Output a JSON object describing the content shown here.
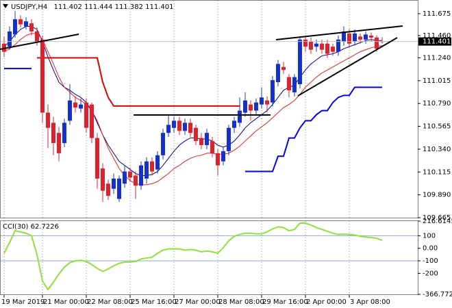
{
  "chart_data": [
    {
      "type": "candlestick",
      "title": "USDJPY,H4",
      "categories": [
        "19 Mar 2019",
        null,
        null,
        null,
        null,
        null,
        null,
        "21 Mar 00:00",
        null,
        null,
        null,
        null,
        null,
        null,
        null,
        "22 Mar 08:00",
        null,
        null,
        null,
        null,
        null,
        null,
        null,
        "25 Mar 16:00",
        null,
        null,
        null,
        null,
        null,
        null,
        null,
        "27 Mar 00:00",
        null,
        null,
        null,
        null,
        null,
        null,
        null,
        "28 Mar 08:00",
        null,
        null,
        null,
        null,
        null,
        null,
        null,
        "29 Mar 16:00",
        null,
        null,
        null,
        null,
        null,
        null,
        null,
        "2 Apr 00:00",
        null,
        null,
        null,
        null,
        null,
        null,
        null,
        "3 Apr 08:00",
        null,
        null,
        null,
        null,
        null,
        null
      ],
      "open": [
        111.38,
        111.35,
        111.47,
        111.62,
        111.55,
        111.58,
        111.5,
        111.42,
        110.7,
        110.6,
        110.5,
        110.4,
        110.62,
        110.8,
        110.74,
        110.8,
        110.78,
        110.45,
        110.15,
        110.0,
        109.95,
        109.85,
        110.0,
        110.12,
        110.08,
        109.98,
        110.05,
        110.22,
        110.14,
        110.28,
        110.5,
        110.55,
        110.62,
        110.52,
        110.6,
        110.55,
        110.45,
        110.38,
        110.42,
        110.3,
        110.22,
        110.32,
        110.55,
        110.6,
        110.7,
        110.78,
        110.72,
        110.78,
        110.82,
        110.8,
        111.0,
        111.15,
        111.05,
        110.9,
        110.98,
        111.42,
        111.4,
        111.35,
        111.38,
        111.38,
        111.35,
        111.3,
        111.4,
        111.48,
        111.4,
        111.45,
        111.42,
        111.46,
        111.44,
        111.402
      ],
      "high": [
        111.45,
        111.55,
        111.7,
        111.66,
        111.64,
        111.62,
        111.54,
        111.46,
        110.78,
        110.66,
        110.56,
        110.64,
        110.98,
        110.86,
        110.84,
        110.84,
        110.8,
        110.5,
        110.2,
        110.04,
        110.1,
        110.08,
        110.18,
        110.16,
        110.12,
        110.22,
        110.26,
        110.26,
        110.32,
        110.54,
        110.67,
        110.66,
        110.66,
        110.64,
        110.64,
        110.58,
        110.5,
        110.54,
        110.46,
        110.34,
        110.36,
        110.58,
        110.66,
        110.85,
        110.9,
        110.82,
        110.84,
        110.95,
        110.86,
        111.06,
        111.22,
        111.2,
        111.08,
        111.08,
        111.45,
        111.46,
        111.44,
        111.42,
        111.42,
        111.42,
        111.38,
        111.46,
        111.55,
        111.52,
        111.52,
        111.48,
        111.5,
        111.49,
        111.46,
        111.444
      ],
      "low": [
        111.25,
        111.32,
        111.44,
        111.54,
        111.52,
        111.46,
        111.36,
        110.6,
        110.35,
        110.28,
        110.22,
        110.36,
        110.58,
        110.7,
        110.7,
        110.5,
        110.4,
        109.95,
        109.82,
        109.84,
        109.9,
        109.82,
        109.96,
        110.02,
        109.85,
        109.94,
        110.0,
        110.08,
        110.1,
        110.24,
        110.46,
        110.5,
        110.48,
        110.48,
        110.46,
        110.38,
        110.34,
        110.34,
        110.26,
        110.08,
        110.18,
        110.28,
        110.5,
        110.56,
        110.66,
        110.62,
        110.68,
        110.74,
        110.7,
        110.76,
        110.96,
        111.08,
        110.85,
        110.86,
        110.94,
        111.3,
        111.28,
        111.3,
        111.28,
        111.24,
        111.26,
        111.26,
        111.36,
        111.34,
        111.36,
        111.38,
        111.38,
        111.4,
        111.3,
        111.382
      ],
      "close": [
        111.3,
        111.5,
        111.62,
        111.57,
        111.6,
        111.5,
        111.4,
        110.7,
        110.55,
        110.4,
        110.3,
        110.6,
        110.82,
        110.75,
        110.78,
        110.55,
        110.45,
        110.05,
        109.93,
        109.88,
        110.05,
        110.05,
        110.12,
        110.06,
        109.98,
        110.18,
        110.22,
        110.12,
        110.28,
        110.5,
        110.58,
        110.62,
        110.52,
        110.6,
        110.5,
        110.42,
        110.38,
        110.5,
        110.3,
        110.18,
        110.32,
        110.55,
        110.62,
        110.72,
        110.82,
        110.72,
        110.8,
        110.85,
        110.78,
        111.02,
        111.18,
        111.12,
        110.92,
        111.05,
        111.42,
        111.35,
        111.32,
        111.38,
        111.32,
        111.28,
        111.3,
        111.42,
        111.5,
        111.38,
        111.48,
        111.42,
        111.47,
        111.44,
        111.33,
        111.401
      ],
      "up_color": "#1530d0",
      "down_color": "#e0202c",
      "series": [
        {
          "color": "#000080",
          "values": [
            111.35,
            111.4,
            111.47,
            111.52,
            111.55,
            111.55,
            111.52,
            111.4,
            111.25,
            111.12,
            111.0,
            110.95,
            110.92,
            110.88,
            110.85,
            110.8,
            110.72,
            110.6,
            110.48,
            110.38,
            110.3,
            110.22,
            110.18,
            110.14,
            110.1,
            110.08,
            110.08,
            110.09,
            110.12,
            110.18,
            110.25,
            110.32,
            110.38,
            110.42,
            110.45,
            110.45,
            110.44,
            110.44,
            110.42,
            110.38,
            110.36,
            110.38,
            110.42,
            110.48,
            110.55,
            110.6,
            110.64,
            110.68,
            110.72,
            110.78,
            110.85,
            110.92,
            110.95,
            110.97,
            111.05,
            111.12,
            111.18,
            111.22,
            111.26,
            111.27,
            111.28,
            111.3,
            111.33,
            111.35,
            111.37,
            111.39,
            111.41,
            111.42,
            111.41,
            111.41
          ]
        },
        {
          "color": "#e02020",
          "values": [
            111.3,
            111.33,
            111.37,
            111.42,
            111.46,
            111.48,
            111.48,
            111.42,
            111.3,
            111.18,
            111.05,
            110.95,
            110.9,
            110.85,
            110.82,
            110.78,
            110.72,
            110.62,
            110.48,
            110.35,
            110.25,
            110.15,
            110.08,
            110.03,
            110.0,
            109.99,
            109.99,
            110.0,
            110.02,
            110.06,
            110.1,
            110.15,
            110.18,
            110.22,
            110.25,
            110.27,
            110.28,
            110.3,
            110.3,
            110.29,
            110.29,
            110.3,
            110.33,
            110.37,
            110.42,
            110.47,
            110.52,
            110.56,
            110.6,
            110.65,
            110.7,
            110.75,
            110.78,
            110.82,
            110.88,
            110.95,
            111.0,
            111.05,
            111.09,
            111.12,
            111.15,
            111.18,
            111.21,
            111.24,
            111.27,
            111.3,
            111.32,
            111.34,
            111.35,
            111.36
          ]
        },
        {
          "color": "#0000ee",
          "values": [
            111.135,
            111.135,
            111.135,
            111.135,
            111.135,
            111.135,
            null,
            null,
            null,
            null,
            null,
            null,
            null,
            null,
            null,
            null,
            null,
            null,
            null,
            null,
            null,
            null,
            null,
            null,
            null,
            null,
            null,
            null,
            null,
            null,
            null,
            null,
            null,
            null,
            null,
            null,
            null,
            null,
            null,
            null,
            null,
            null,
            null,
            null,
            110.12,
            110.12,
            110.12,
            110.12,
            110.12,
            110.12,
            110.27,
            110.27,
            110.45,
            110.45,
            110.55,
            110.62,
            110.62,
            110.68,
            110.72,
            110.72,
            110.8,
            110.85,
            110.87,
            110.87,
            110.95,
            110.95,
            110.95,
            110.95,
            110.95,
            110.95
          ]
        },
        {
          "color": "#dd0000",
          "values": [
            null,
            null,
            null,
            null,
            null,
            null,
            111.24,
            111.24,
            111.24,
            111.24,
            111.24,
            111.24,
            111.24,
            111.24,
            111.24,
            111.24,
            111.24,
            111.24,
            111.0,
            110.85,
            110.765,
            110.765,
            110.765,
            110.765,
            110.765,
            110.765,
            110.765,
            110.765,
            110.765,
            110.765,
            110.765,
            110.765,
            110.765,
            110.765,
            110.765,
            110.765,
            110.765,
            110.765,
            110.765,
            110.765,
            110.765,
            110.765,
            110.765,
            110.765,
            null,
            null,
            null,
            null,
            null,
            null,
            null,
            null,
            null,
            null,
            null,
            null,
            null,
            null,
            null,
            null,
            null,
            null,
            null,
            null,
            null,
            null,
            null,
            null,
            null,
            null
          ]
        }
      ],
      "ylim": [
        109.665,
        111.783
      ],
      "yticks": [
        111.675,
        {
          "value": 111.46,
          "label": "111.460"
        },
        {
          "value": 111.24,
          "label": "111.240"
        },
        111.015,
        {
          "value": 110.79,
          "label": "110.790"
        },
        110.565,
        {
          "value": 110.34,
          "label": "110.340"
        },
        110.115,
        {
          "value": 109.89,
          "label": "109.890"
        },
        109.665
      ]
    },
    {
      "type": "line",
      "title": "CCI(30)",
      "color": "#8ee23a",
      "values": [
        -40,
        45,
        140,
        130,
        120,
        100,
        -50,
        -260,
        -330,
        -270,
        -205,
        -150,
        -115,
        -100,
        -95,
        -105,
        -130,
        -160,
        -185,
        -165,
        -140,
        -120,
        -110,
        -110,
        -105,
        -85,
        -78,
        -72,
        -40,
        -15,
        -5,
        -5,
        -5,
        -15,
        -10,
        -15,
        -28,
        -22,
        -28,
        -40,
        5,
        60,
        95,
        110,
        120,
        120,
        115,
        115,
        130,
        155,
        170,
        165,
        140,
        150,
        200,
        200,
        185,
        165,
        150,
        135,
        120,
        110,
        112,
        110,
        105,
        95,
        90,
        85,
        80,
        62.7226
      ],
      "ylim": [
        -366.7722,
        216.6145
      ],
      "yticks": [
        216.6145,
        100,
        {
          "value": 0,
          "label": "0.00"
        },
        -100,
        -200,
        -366.7722
      ],
      "levels": [
        100,
        -100
      ]
    }
  ]
}
